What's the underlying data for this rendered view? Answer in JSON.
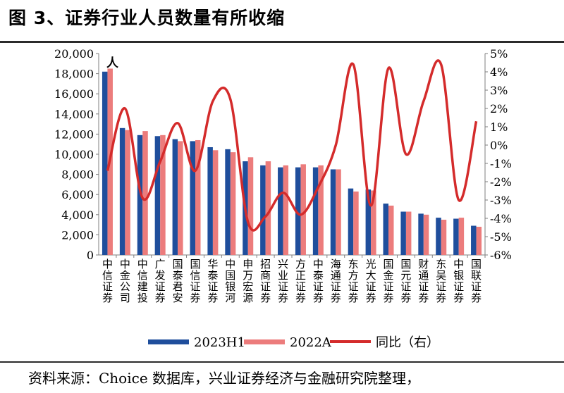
{
  "title": "图 3、证券行业人员数量有所收缩",
  "source": "资料来源：Choice 数据库，兴业证券经济与金融研究院整理，",
  "unit_label": "人",
  "colors": {
    "h1": "#1f4e9c",
    "a2022": "#ec7c7c",
    "yoy": "#d42b2b"
  },
  "chart_data": {
    "type": "bar",
    "categories": [
      "中信证券",
      "中金公司",
      "中信建投",
      "广发证券",
      "国泰君安",
      "国信证券",
      "华泰证券",
      "中国银河",
      "申万宏源",
      "招商证券",
      "兴业证券",
      "方正证券",
      "中泰证券",
      "海通证券",
      "东方证券",
      "光大证券",
      "国金证券",
      "国元证券",
      "财通证券",
      "东吴证券",
      "中银证券",
      "国联证券"
    ],
    "series": [
      {
        "name": "2023H1",
        "values": [
          18200,
          12600,
          11900,
          11800,
          11500,
          11300,
          10700,
          10500,
          9300,
          8900,
          8700,
          8700,
          8700,
          8500,
          6600,
          6500,
          5100,
          4300,
          4100,
          3700,
          3600,
          2900
        ]
      },
      {
        "name": "2022A",
        "values": [
          18500,
          12400,
          12300,
          11900,
          11300,
          11400,
          10400,
          10200,
          9700,
          9300,
          8900,
          9000,
          8900,
          8500,
          6300,
          6400,
          4900,
          4300,
          4000,
          3500,
          3700,
          2800
        ]
      }
    ],
    "line": {
      "name": "同比（右）",
      "values": [
        -1.4,
        2.0,
        -2.9,
        -0.9,
        1.2,
        -1.4,
        2.4,
        2.5,
        -4.2,
        -3.9,
        -2.6,
        -3.8,
        -2.3,
        0.0,
        4.4,
        -3.3,
        4.2,
        -0.5,
        2.4,
        4.4,
        -3.0,
        1.3
      ]
    },
    "ylim": [
      0,
      20000
    ],
    "yticks": [
      0,
      2000,
      4000,
      6000,
      8000,
      10000,
      12000,
      14000,
      16000,
      18000,
      20000
    ],
    "ytick_labels": [
      "0",
      "2,000",
      "4,000",
      "6,000",
      "8,000",
      "10,000",
      "12,000",
      "14,000",
      "16,000",
      "18,000",
      "20,000"
    ],
    "y2lim": [
      -6,
      5
    ],
    "y2ticks": [
      -6,
      -5,
      -4,
      -3,
      -2,
      -1,
      0,
      1,
      2,
      3,
      4,
      5
    ],
    "y2tick_labels": [
      "-6%",
      "-5%",
      "-4%",
      "-3%",
      "-2%",
      "-1%",
      "0%",
      "1%",
      "2%",
      "3%",
      "4%",
      "5%"
    ],
    "legend_position": "bottom"
  }
}
